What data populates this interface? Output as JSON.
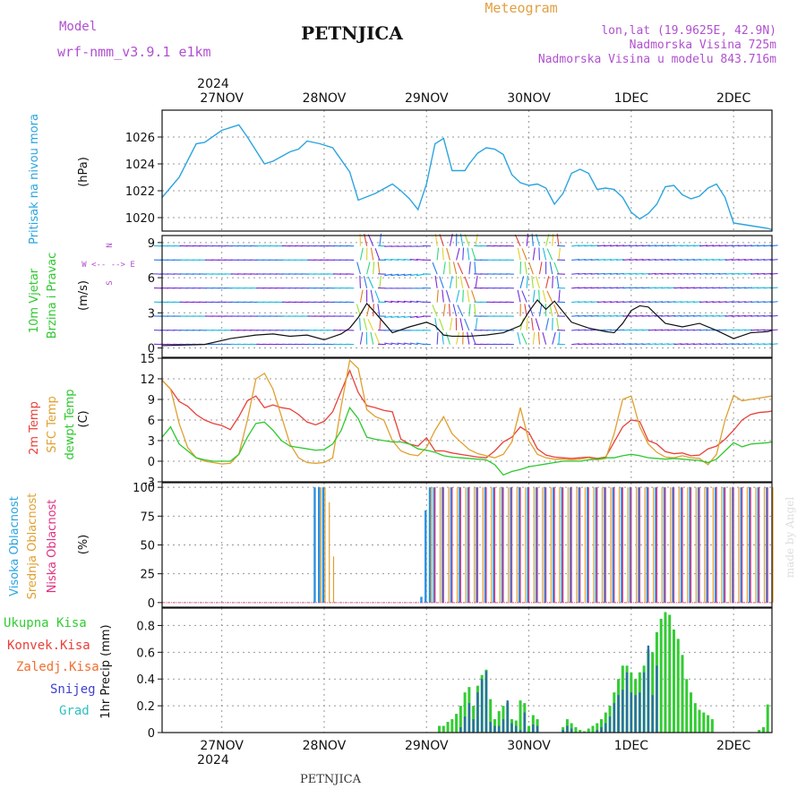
{
  "header": {
    "model_label": "Model",
    "model_name": "wrf-nmm_v3.9.1 e1km",
    "title": "PETNJICA",
    "meteogram_label": "Meteogram",
    "location": "lon,lat (19.9625E, 42.9N)",
    "altitude": "Nadmorska Visina 725m",
    "model_altitude": "Nadmorska Visina u modelu 843.716m",
    "footer_title": "PETNJICA",
    "watermark": "made by Angel"
  },
  "time_axis": {
    "year": "2024",
    "days": [
      "27NOV",
      "28NOV",
      "29NOV",
      "30NOV",
      "1DEC",
      "2DEC"
    ],
    "range_hours": [
      0,
      143
    ]
  },
  "panel_labels": {
    "pressure": [
      "Pritisak na nivou mora"
    ],
    "pressure_unit": "(hPa)",
    "wind": [
      "10m Vjetar",
      "Brzina i Pravac"
    ],
    "wind_unit": "(m/s)",
    "wind_compass": "W <-- --> E",
    "wind_compass_n": "N",
    "wind_compass_s": "S",
    "temp_red": "2m Temp",
    "temp_orange": "SFC Temp",
    "temp_green": "dewpt Temp",
    "temp_unit": "(C)",
    "cloud_high": "Visoka Oblacnost",
    "cloud_mid": "Srednja Oblacnost",
    "cloud_low": "Niska Oblacnost",
    "cloud_unit": "(%)",
    "precip_total": "Ukupna Kisa",
    "precip_conv": "Konvek.Kisa",
    "precip_frozen": "Zaledj.Kisa",
    "precip_snow": "Snijeg",
    "precip_hail": "Grad",
    "precip_unit": "1hr Precip (mm)"
  },
  "colors": {
    "pressure": "#2ba4e0",
    "temp2m": "#e8413a",
    "sfc": "#e0a030",
    "dewpt": "#2ec82e",
    "cloud_high": "#2b90e0",
    "cloud_mid": "#e0a030",
    "cloud_low": "#e03080",
    "precip_total": "#33cc33",
    "precip_conv": "#2b6ea8",
    "title_purple": "#b050d0",
    "meteogram_orange": "#e0a040"
  },
  "chart_data": [
    {
      "type": "line",
      "name": "pressure",
      "ylabel": "(hPa)",
      "ylim": [
        1019,
        1028
      ],
      "yticks": [
        1020,
        1022,
        1024,
        1026
      ],
      "x": [
        0,
        4,
        8,
        10,
        14,
        18,
        20,
        24,
        26,
        30,
        32,
        34,
        37,
        40,
        44,
        46,
        50,
        54,
        56,
        58,
        60,
        62,
        64,
        66,
        68,
        71,
        72,
        74,
        76,
        78,
        80,
        82,
        84,
        86,
        88,
        90,
        92,
        94,
        96,
        98,
        100,
        102,
        104,
        106,
        108,
        110,
        112,
        114,
        116,
        118,
        120,
        122,
        124,
        126,
        128,
        130,
        132,
        134,
        136,
        138,
        140,
        142,
        143
      ],
      "values": [
        1021.5,
        1023,
        1025.5,
        1025.6,
        1026.5,
        1026.9,
        1026,
        1024,
        1024.2,
        1024.9,
        1025.1,
        1025.7,
        1025.5,
        1025.2,
        1023.4,
        1021.3,
        1021.8,
        1022.5,
        1022,
        1021.4,
        1020.6,
        1022.5,
        1025.5,
        1025.9,
        1023.5,
        1023.5,
        1024,
        1024.8,
        1025.2,
        1025.1,
        1024.7,
        1023.2,
        1022.6,
        1022.4,
        1022.5,
        1022.2,
        1021,
        1021.8,
        1023.3,
        1023.6,
        1023.3,
        1022.1,
        1022.2,
        1022.1,
        1021.5,
        1020.4,
        1019.9,
        1020.3,
        1021,
        1022.3,
        1022.4,
        1021.7,
        1021.4,
        1021.6,
        1022.2,
        1022.5,
        1021.5,
        1019.6,
        1019.5,
        1019.4,
        1019.3,
        1019.2,
        1019.1
      ]
    },
    {
      "type": "line",
      "name": "wind_speed",
      "ylabel": "(m/s)",
      "ylim": [
        -0.8,
        9.6
      ],
      "yticks": [
        0,
        3,
        6,
        9
      ],
      "x": [
        0,
        10,
        16,
        22,
        26,
        30,
        34,
        38,
        42,
        44,
        46,
        48,
        50,
        54,
        58,
        62,
        64,
        66,
        68,
        72,
        76,
        80,
        84,
        86,
        88,
        90,
        92,
        96,
        100,
        104,
        106,
        108,
        110,
        112,
        114,
        118,
        122,
        126,
        130,
        134,
        138,
        142,
        143
      ],
      "values": [
        0.2,
        0.3,
        0.8,
        1.1,
        1.2,
        1.0,
        1.1,
        0.7,
        1.2,
        1.7,
        2.6,
        3.8,
        3.0,
        1.3,
        1.8,
        2.2,
        1.9,
        1.1,
        1.0,
        1.0,
        1.1,
        1.3,
        1.9,
        3.1,
        4.1,
        3.3,
        4.0,
        2.2,
        1.7,
        1.4,
        1.3,
        2.1,
        3.2,
        3.6,
        3.5,
        2.1,
        1.8,
        2.1,
        1.5,
        0.8,
        1.3,
        1.4,
        1.5
      ]
    },
    {
      "type": "line",
      "name": "temperature",
      "ylabel": "(C)",
      "ylim": [
        -3,
        15
      ],
      "yticks": [
        -3,
        0,
        3,
        6,
        9,
        12,
        15
      ],
      "x": [
        0,
        2,
        4,
        6,
        8,
        10,
        12,
        14,
        16,
        18,
        20,
        22,
        24,
        26,
        28,
        30,
        32,
        34,
        36,
        38,
        40,
        42,
        44,
        46,
        48,
        50,
        52,
        54,
        56,
        58,
        60,
        62,
        64,
        66,
        68,
        70,
        72,
        74,
        76,
        78,
        80,
        82,
        84,
        86,
        88,
        90,
        92,
        94,
        96,
        98,
        100,
        102,
        104,
        106,
        108,
        110,
        112,
        114,
        116,
        118,
        120,
        122,
        124,
        126,
        128,
        130,
        132,
        134,
        136,
        138,
        140,
        142,
        143
      ],
      "series": [
        {
          "name": "temp2m",
          "values": [
            11.8,
            10.5,
            8.7,
            8,
            6.8,
            6,
            5.5,
            5.2,
            4.6,
            6.5,
            8.8,
            9.5,
            7.8,
            8.2,
            7.8,
            7.6,
            6.8,
            5.7,
            5.3,
            5.8,
            7.2,
            10.2,
            13.2,
            10,
            8.1,
            7.8,
            7.4,
            7.2,
            3.2,
            2.5,
            2.2,
            3.4,
            1.5,
            1.5,
            1.2,
            1,
            0.8,
            0.6,
            0.5,
            1.5,
            2.8,
            3.5,
            5,
            4.2,
            1.8,
            0.9,
            0.6,
            0.5,
            0.4,
            0.5,
            0.6,
            0.4,
            0.6,
            2.8,
            5,
            6,
            5.8,
            3,
            2.5,
            1.4,
            1.1,
            1.2,
            0.8,
            0.9,
            1.8,
            2.2,
            3.2,
            4.5,
            6,
            6.8,
            7.1,
            7.2,
            7.3
          ]
        },
        {
          "name": "sfc",
          "values": [
            11.8,
            10.5,
            5.5,
            2,
            0.5,
            0,
            -0.2,
            -0.4,
            -0.3,
            1,
            6,
            12,
            12.8,
            10.5,
            6.5,
            2.5,
            0.5,
            -0.2,
            -0.3,
            -0.2,
            0.5,
            8,
            14.7,
            13.5,
            7.5,
            6.5,
            6,
            3,
            1.5,
            1,
            0.8,
            2,
            4.5,
            6.5,
            4,
            2.8,
            1.7,
            1.1,
            0.8,
            0.5,
            1,
            2.8,
            7.8,
            3,
            1,
            0.5,
            0.3,
            0.3,
            0.2,
            0.3,
            0.5,
            0.2,
            0.4,
            4,
            9,
            9.5,
            5,
            2.5,
            1.3,
            0.6,
            0.5,
            0.8,
            0.5,
            0.4,
            -0.5,
            1,
            6,
            9.6,
            8.8,
            9,
            9.2,
            9.4,
            9.5
          ]
        },
        {
          "name": "dewpt",
          "values": [
            3.5,
            5,
            2.5,
            1.5,
            0.5,
            0.2,
            0,
            0,
            0,
            1,
            3.5,
            5.5,
            5.7,
            4.5,
            3,
            2.2,
            2,
            1.8,
            1.6,
            1.7,
            2.5,
            4.5,
            7.8,
            6.2,
            3.5,
            3.2,
            3,
            2.8,
            2.8,
            2.5,
            1.8,
            1.6,
            1.3,
            0.8,
            0.6,
            0.5,
            0.4,
            0.3,
            0.2,
            -0.5,
            -2,
            -1.5,
            -1.2,
            -0.8,
            -0.6,
            -0.4,
            -0.2,
            0,
            0,
            0,
            0.2,
            0.3,
            0.5,
            0.5,
            0.8,
            1,
            0.8,
            0.5,
            0.4,
            0.3,
            0.4,
            0.3,
            0.2,
            0.1,
            -0.2,
            0.3,
            1.5,
            2.7,
            2.1,
            2.5,
            2.6,
            2.7,
            2.8
          ]
        }
      ]
    },
    {
      "type": "bar",
      "name": "clouds",
      "ylabel": "(%)",
      "ylim": [
        -4,
        104
      ],
      "yticks": [
        0,
        25,
        50,
        75,
        100
      ],
      "series": [
        {
          "name": "high",
          "x": [
            36,
            37,
            38,
            61,
            62,
            63,
            64,
            66,
            68,
            70,
            72,
            74,
            76,
            78,
            80,
            82,
            84,
            86,
            88,
            90,
            92,
            94,
            96,
            98,
            100,
            102,
            104,
            106,
            108,
            110,
            112,
            114,
            116,
            118,
            120,
            122,
            124,
            126,
            128,
            130,
            132,
            134,
            136,
            138,
            140,
            142
          ],
          "values": [
            100,
            100,
            100,
            5,
            80,
            100,
            100,
            100,
            100,
            100,
            100,
            100,
            100,
            100,
            100,
            100,
            100,
            100,
            100,
            100,
            100,
            100,
            100,
            100,
            100,
            100,
            100,
            100,
            100,
            100,
            100,
            100,
            100,
            100,
            100,
            100,
            100,
            100,
            100,
            100,
            100,
            100,
            100,
            100,
            100,
            100
          ]
        },
        {
          "name": "mid",
          "x": [
            37,
            38,
            39,
            40,
            63,
            65,
            67,
            69,
            71,
            73,
            75,
            77,
            79,
            81,
            83,
            85,
            87,
            89,
            91,
            93,
            95,
            97,
            99,
            101,
            103,
            105,
            107,
            109,
            111,
            113,
            115,
            117,
            119,
            121,
            123,
            125,
            127,
            129,
            131,
            133,
            135,
            137,
            139,
            141,
            143
          ],
          "values": [
            100,
            100,
            87,
            40,
            100,
            100,
            100,
            100,
            100,
            100,
            100,
            100,
            100,
            100,
            100,
            100,
            100,
            100,
            100,
            100,
            100,
            100,
            100,
            100,
            100,
            100,
            100,
            100,
            100,
            100,
            100,
            100,
            100,
            100,
            100,
            100,
            100,
            100,
            100,
            100,
            100,
            100,
            100,
            100,
            100
          ]
        },
        {
          "name": "low",
          "x": [
            64,
            66,
            68,
            70,
            72,
            74,
            76,
            78,
            80,
            82,
            84,
            86,
            88,
            90,
            92,
            94,
            96,
            98,
            100,
            102,
            104,
            106,
            108,
            110,
            112,
            114,
            116,
            118,
            120,
            122,
            124,
            126,
            128,
            130,
            132,
            134,
            136,
            138,
            140,
            142
          ],
          "values": [
            100,
            100,
            100,
            100,
            100,
            100,
            100,
            100,
            100,
            100,
            100,
            100,
            100,
            100,
            100,
            100,
            100,
            100,
            100,
            100,
            100,
            100,
            100,
            100,
            100,
            100,
            100,
            100,
            100,
            100,
            100,
            100,
            100,
            100,
            100,
            100,
            100,
            100,
            100,
            100
          ]
        }
      ]
    },
    {
      "type": "bar",
      "name": "precipitation",
      "ylabel": "1hr Precip (mm)",
      "ylim": [
        0,
        0.93
      ],
      "yticks": [
        0,
        0.2,
        0.4,
        0.6,
        0.8
      ],
      "x": [
        65,
        66,
        67,
        68,
        69,
        70,
        71,
        72,
        73,
        74,
        75,
        76,
        77,
        78,
        79,
        80,
        81,
        82,
        83,
        84,
        85,
        86,
        87,
        88,
        89,
        90,
        91,
        92,
        93,
        94,
        95,
        96,
        97,
        98,
        99,
        100,
        101,
        102,
        103,
        104,
        105,
        106,
        107,
        108,
        109,
        110,
        111,
        112,
        113,
        114,
        115,
        116,
        117,
        118,
        119,
        120,
        121,
        122,
        123,
        124,
        125,
        126,
        127,
        128,
        129,
        130,
        131,
        132,
        133,
        134,
        135,
        136,
        137,
        138,
        139,
        140,
        141,
        142
      ],
      "series": [
        {
          "name": "total",
          "values": [
            0.05,
            0.05,
            0.08,
            0.1,
            0.14,
            0.2,
            0.3,
            0.34,
            0.2,
            0.35,
            0.43,
            0.47,
            0.25,
            0.1,
            0.16,
            0.2,
            0.22,
            0.1,
            0.09,
            0.24,
            0.22,
            0.05,
            0.13,
            0.1,
            0,
            0,
            0,
            0,
            0,
            0.04,
            0.1,
            0.07,
            0.04,
            0.02,
            0.01,
            0.03,
            0.05,
            0.07,
            0.1,
            0.15,
            0.2,
            0.3,
            0.4,
            0.5,
            0.5,
            0.45,
            0.4,
            0.45,
            0.5,
            0.62,
            0.6,
            0.75,
            0.85,
            0.9,
            0.88,
            0.77,
            0.7,
            0.58,
            0.4,
            0.3,
            0.22,
            0.17,
            0.15,
            0.13,
            0.1,
            0,
            0,
            0,
            0,
            0,
            0,
            0,
            0,
            0,
            0,
            0.02,
            0.04,
            0.21
          ]
        },
        {
          "name": "convective",
          "values": [
            0,
            0,
            0,
            0,
            0,
            0.04,
            0.12,
            0.22,
            0.1,
            0.3,
            0.4,
            0.46,
            0.08,
            0.05,
            0.05,
            0.1,
            0.24,
            0.07,
            0.05,
            0.02,
            0.15,
            0,
            0.06,
            0.05,
            0,
            0,
            0,
            0,
            0,
            0.02,
            0.05,
            0.03,
            0,
            0,
            0,
            0,
            0,
            0.02,
            0.04,
            0.07,
            0.12,
            0.22,
            0.28,
            0.32,
            0.45,
            0.3,
            0.28,
            0.3,
            0.45,
            0.65,
            0.28,
            0.5,
            0,
            0,
            0,
            0,
            0,
            0,
            0,
            0,
            0,
            0,
            0,
            0,
            0,
            0,
            0,
            0,
            0,
            0,
            0,
            0,
            0,
            0,
            0,
            0,
            0,
            0
          ]
        }
      ]
    }
  ]
}
